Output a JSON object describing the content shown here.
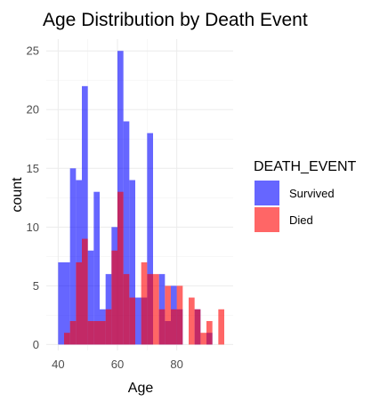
{
  "chart_data": {
    "type": "bar",
    "subtype": "overlaid-histogram",
    "title": "Age Distribution by Death Event",
    "xlabel": "Age",
    "ylabel": "count",
    "xlim": [
      36,
      99
    ],
    "ylim": [
      -0.5,
      26
    ],
    "xticks": [
      40,
      60,
      80
    ],
    "yticks": [
      0,
      5,
      10,
      15,
      20,
      25
    ],
    "grid": true,
    "bin_width": 2,
    "legend": {
      "title": "DEATH_EVENT",
      "position": "right"
    },
    "series": [
      {
        "name": "Survived",
        "color": "#0000FF",
        "x": [
          41,
          43,
          45,
          47,
          49,
          51,
          53,
          55,
          57,
          59,
          61,
          63,
          65,
          67,
          69,
          71,
          73,
          75,
          77,
          79,
          81,
          83,
          85,
          87,
          89,
          91,
          93,
          95
        ],
        "values": [
          7,
          7,
          15,
          14,
          22,
          8,
          13,
          3,
          6,
          10,
          25,
          19,
          14,
          4,
          4,
          18,
          0,
          6,
          2,
          5,
          3,
          0,
          0,
          3,
          0,
          1,
          0,
          0
        ]
      },
      {
        "name": "Died",
        "color": "#FF0000",
        "x": [
          41,
          43,
          45,
          47,
          49,
          51,
          53,
          55,
          57,
          59,
          61,
          63,
          65,
          67,
          69,
          71,
          73,
          75,
          77,
          79,
          81,
          83,
          85,
          87,
          89,
          91,
          93,
          95
        ],
        "values": [
          0,
          1,
          2,
          7,
          9,
          2,
          2,
          2,
          3,
          8,
          13,
          6,
          4,
          0,
          7,
          6,
          6,
          3,
          5,
          3,
          5,
          0,
          4,
          3,
          1,
          2,
          0,
          3
        ]
      }
    ]
  }
}
